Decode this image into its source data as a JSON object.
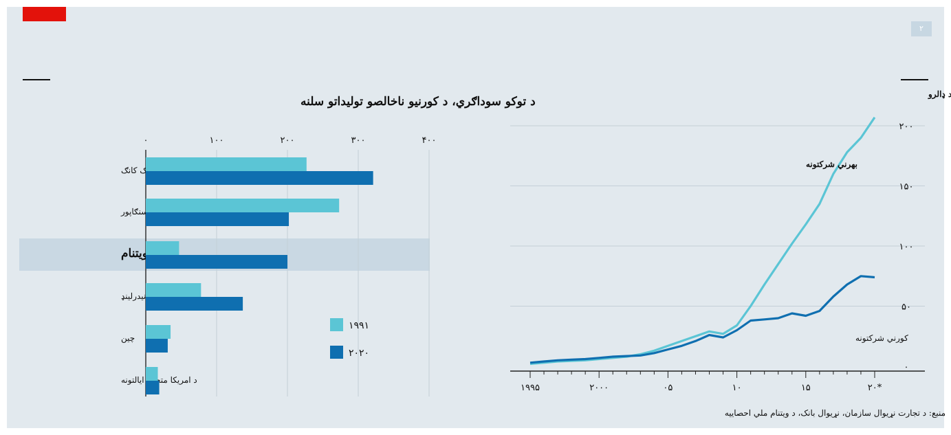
{
  "page_number": "۲",
  "source": "منبع: د تجارت نړیوال سازمان، نړیوال بانک، د ویتنام ملي احصاییه",
  "colors": {
    "light": "#5bc5d5",
    "dark": "#0f6fb0",
    "accent": "#e3120b",
    "background": "#e2e9ee"
  },
  "chart_data": [
    {
      "type": "bar",
      "orientation": "horizontal",
      "title": "د توکو سوداګري، د کورنیو ناخالصو تولیداتو سلنه",
      "categories": [
        "هانګ کانګ",
        "سنګاپور",
        "ویتنام",
        "نیدرلینډ",
        "چین",
        "د امریکا متحده ایالتونه"
      ],
      "highlight": "ویتنام",
      "tick_labels": [
        "۰",
        "۱۰۰",
        "۲۰۰",
        "۳۰۰",
        "۴۰۰"
      ],
      "xlim": [
        0,
        400
      ],
      "series": [
        {
          "name": "۱۹۹۱",
          "values": [
            227,
            273,
            47,
            78,
            35,
            17
          ]
        },
        {
          "name": "۲۰۲۰",
          "values": [
            321,
            202,
            200,
            137,
            31,
            19
          ]
        }
      ],
      "legend_position": "right"
    },
    {
      "type": "line",
      "title": "ویتنام، د توکو صادرات، په میلیارد ډالرو",
      "x_tick_labels": [
        "۱۹۹۵",
        "۲۰۰۰",
        "۰۵",
        "۱۰",
        "۱۵",
        "۲۰*"
      ],
      "x_ticks": [
        1995,
        2000,
        2005,
        2010,
        2015,
        2020
      ],
      "y_tick_labels": [
        "۰",
        "۵۰",
        "۱۰۰",
        "۱۵۰",
        "۲۰۰"
      ],
      "ylim": [
        0,
        200
      ],
      "xlim": [
        1995,
        2020
      ],
      "series": [
        {
          "name": "بهرني شرکتونه",
          "x": [
            1995,
            1996,
            1997,
            1998,
            1999,
            2000,
            2001,
            2002,
            2003,
            2004,
            2005,
            2006,
            2007,
            2008,
            2009,
            2010,
            2011,
            2012,
            2013,
            2014,
            2015,
            2016,
            2017,
            2018,
            2019,
            2020
          ],
          "y": [
            2,
            3,
            4,
            4.5,
            5,
            6,
            7,
            8,
            10,
            13,
            17,
            21,
            25,
            29,
            27,
            34,
            50,
            68,
            85,
            102,
            118,
            135,
            160,
            178,
            190,
            207
          ]
        },
        {
          "name": "کورني شرکتونه",
          "x": [
            1995,
            1996,
            1997,
            1998,
            1999,
            2000,
            2001,
            2002,
            2003,
            2004,
            2005,
            2006,
            2007,
            2008,
            2009,
            2010,
            2011,
            2012,
            2013,
            2014,
            2015,
            2016,
            2017,
            2018,
            2019,
            2020
          ],
          "y": [
            3,
            4,
            5,
            5.5,
            6,
            7,
            8,
            8.5,
            9,
            11,
            14,
            17,
            21,
            26,
            24,
            30,
            38,
            39,
            40,
            44,
            42,
            46,
            58,
            68,
            75,
            74
          ]
        }
      ]
    }
  ]
}
